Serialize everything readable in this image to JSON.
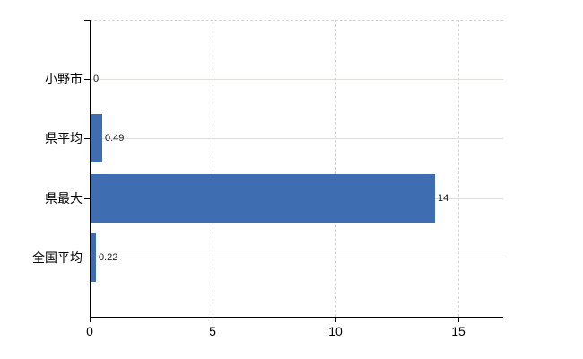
{
  "chart_data": {
    "type": "bar",
    "orientation": "horizontal",
    "title": "",
    "categories": [
      "小野市",
      "県平均",
      "県最大",
      "全国平均"
    ],
    "values": [
      0,
      0.49,
      14,
      0.22
    ],
    "value_labels": [
      "0",
      "0.49",
      "14",
      "0.22"
    ],
    "x_ticks": [
      0,
      5,
      10,
      15
    ],
    "x_tick_labels": [
      "0",
      "5",
      "10",
      "15"
    ],
    "xlim": [
      0,
      16.8
    ],
    "xlabel": "",
    "ylabel": "",
    "grid": true,
    "legend": false,
    "colors": {
      "bar": "#3e6db2",
      "h_gridline": "#d9e1d9",
      "v_gridline": "#d6d3d8",
      "top_border": "#d5d5d5",
      "axis": "#000000",
      "category_text": "#000000",
      "value_text": "#1a1a1a"
    }
  }
}
